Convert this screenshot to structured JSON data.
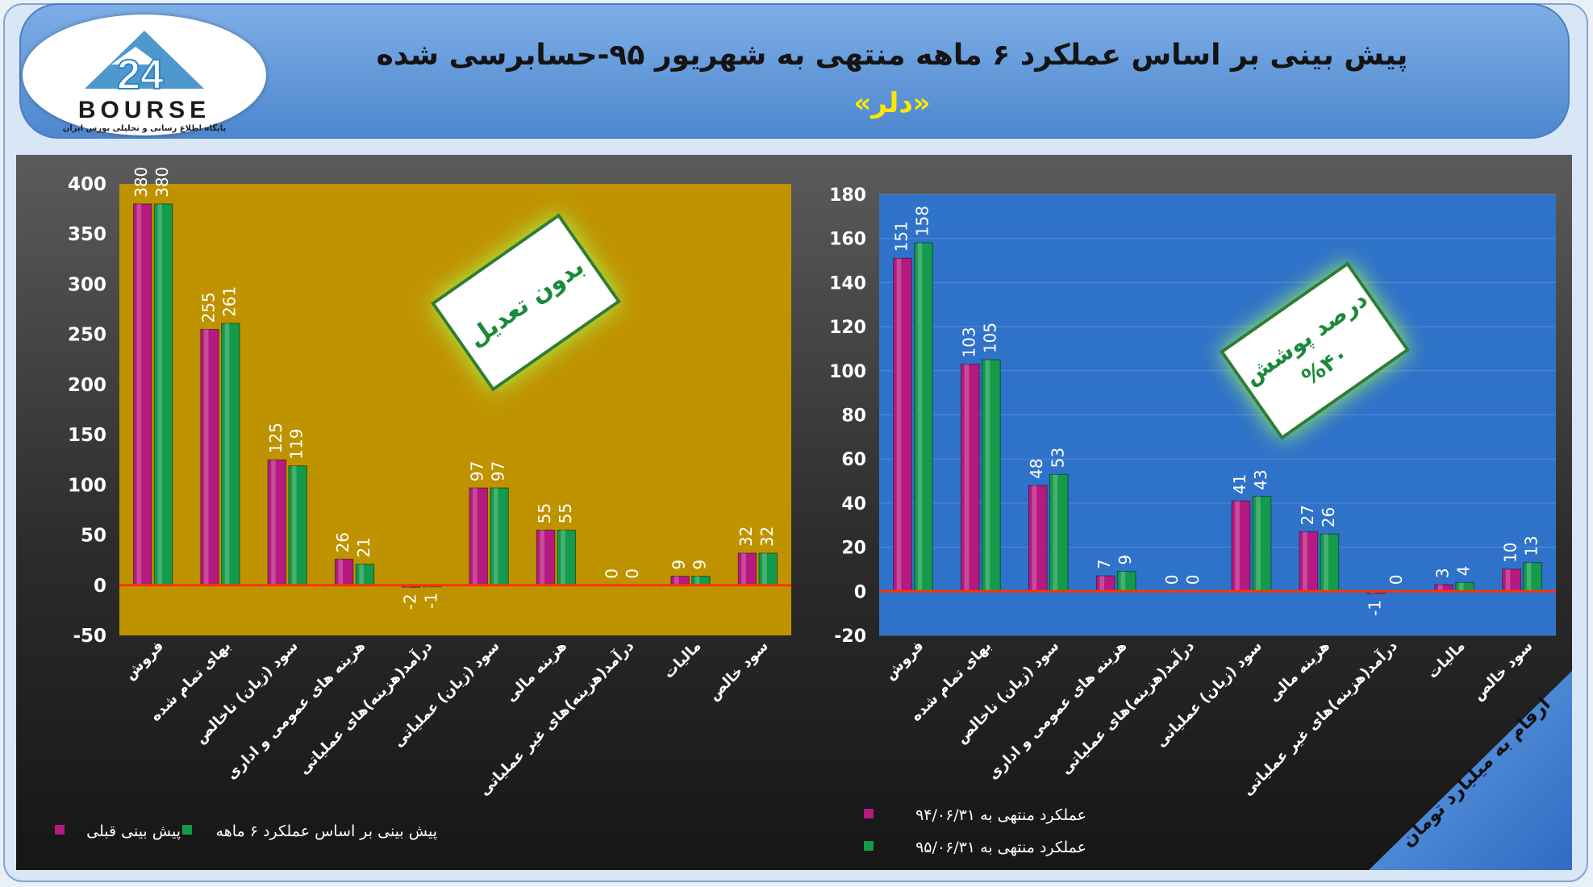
{
  "header": {
    "title": "پیش بینی بر اساس عملکرد ۶ ماهه منتهی به شهریور ۹۵-حسابرسی شده",
    "subtitle": "«دلر»",
    "logo_text": "BOURSE",
    "logo_number": "24",
    "logo_tagline": "پایگاه اطلاع رسانی و تحلیلی بورس ایران"
  },
  "units_note": "ارقام به میلیارد تومان",
  "colors": {
    "series_pink": "#b6197f",
    "series_green": "#139a4a",
    "left_plot_bg": "#bf9300",
    "right_plot_bg": "#2f72c9",
    "zero_line": "#ff3300"
  },
  "chart_data": [
    {
      "type": "bar",
      "badge": "بدون تعدیل",
      "categories": [
        "فروش",
        "بهای تمام شده",
        "سود (زیان) ناخالص",
        "هزینه های عمومی و اداری",
        "درآمد(هزینه)های عملیاتی",
        "سود (زیان) عملیاتی",
        "هزینه مالی",
        "درآمد(هزینه)های غیر عملیاتی",
        "مالیات",
        "سود خالص"
      ],
      "series": [
        {
          "name": "پیش بینی قبلی",
          "color": "#b6197f",
          "values": [
            380,
            255,
            125,
            26,
            -2,
            97,
            55,
            0,
            9,
            32
          ]
        },
        {
          "name": "پیش بینی بر اساس عملکرد ۶ ماهه",
          "color": "#139a4a",
          "values": [
            380,
            261,
            119,
            21,
            -1,
            97,
            55,
            0,
            9,
            32
          ]
        }
      ],
      "ylim": [
        -50,
        400
      ],
      "yticks": [
        -50,
        0,
        50,
        100,
        150,
        200,
        250,
        300,
        350,
        400
      ],
      "legend_position": "bottom"
    },
    {
      "type": "bar",
      "badge": "درصد پوشش",
      "badge_value": "%۴۰",
      "categories": [
        "فروش",
        "بهای تمام شده",
        "سود (زیان) ناخالص",
        "هزینه های عمومی و اداری",
        "درآمد(هزینه)های عملیاتی",
        "سود (زیان) عملیاتی",
        "هزینه مالی",
        "درآمد(هزینه)های غیر عملیاتی",
        "مالیات",
        "سود خالص"
      ],
      "series": [
        {
          "name": "عملکرد منتهی به ۹۴/۰۶/۳۱",
          "color": "#b6197f",
          "values": [
            151,
            103,
            48,
            7,
            0,
            41,
            27,
            -1,
            3,
            10
          ]
        },
        {
          "name": "عملکرد منتهی به ۹۵/۰۶/۳۱",
          "color": "#139a4a",
          "values": [
            158,
            105,
            53,
            9,
            0,
            43,
            26,
            0,
            4,
            13
          ]
        }
      ],
      "ylim": [
        -20,
        180
      ],
      "yticks": [
        -20,
        0,
        20,
        40,
        60,
        80,
        100,
        120,
        140,
        160,
        180
      ],
      "legend_position": "bottom-left"
    }
  ]
}
